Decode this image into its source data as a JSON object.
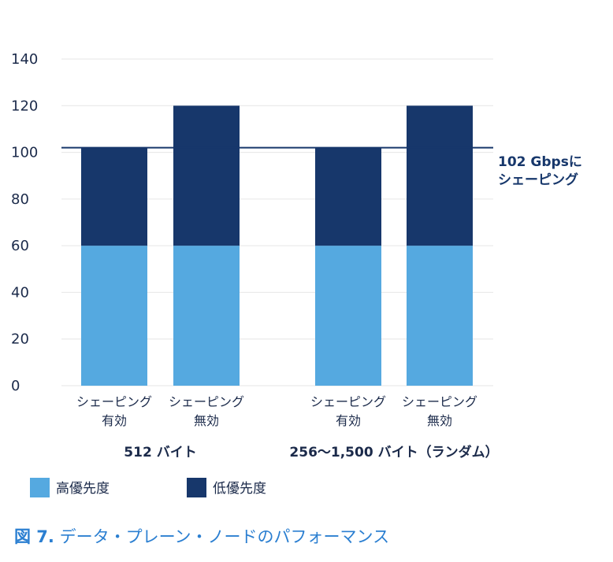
{
  "chart_data": {
    "type": "bar",
    "stacked": true,
    "title": "",
    "xlabel": "",
    "ylabel": "",
    "ylim": [
      0,
      140
    ],
    "yticks": [
      0,
      20,
      40,
      60,
      80,
      100,
      120,
      140
    ],
    "grid": true,
    "categories": [
      {
        "line1": "シェーピング",
        "line2": "有効"
      },
      {
        "line1": "シェーピング",
        "line2": "無効"
      },
      {
        "line1": "シェーピング",
        "line2": "有効"
      },
      {
        "line1": "シェーピング",
        "line2": "無効"
      }
    ],
    "groups": [
      {
        "label": "512 バイト",
        "members": [
          0,
          1
        ]
      },
      {
        "label": "256～1,500 バイト（ランダム）",
        "members": [
          2,
          3
        ]
      }
    ],
    "series": [
      {
        "name": "高優先度",
        "color": "#55a9e0",
        "values": [
          60,
          60,
          60,
          60
        ]
      },
      {
        "name": "低優先度",
        "color": "#17376b",
        "values": [
          42,
          60,
          42,
          60
        ]
      }
    ],
    "reference_line": {
      "value": 102,
      "label_line1": "102 Gbpsに",
      "label_line2": "シェーピング",
      "color": "#17376b"
    },
    "legend_position": "bottom-left"
  },
  "caption": {
    "prefix": "図 7.",
    "text": " データ・プレーン・ノードのパフォーマンス"
  }
}
